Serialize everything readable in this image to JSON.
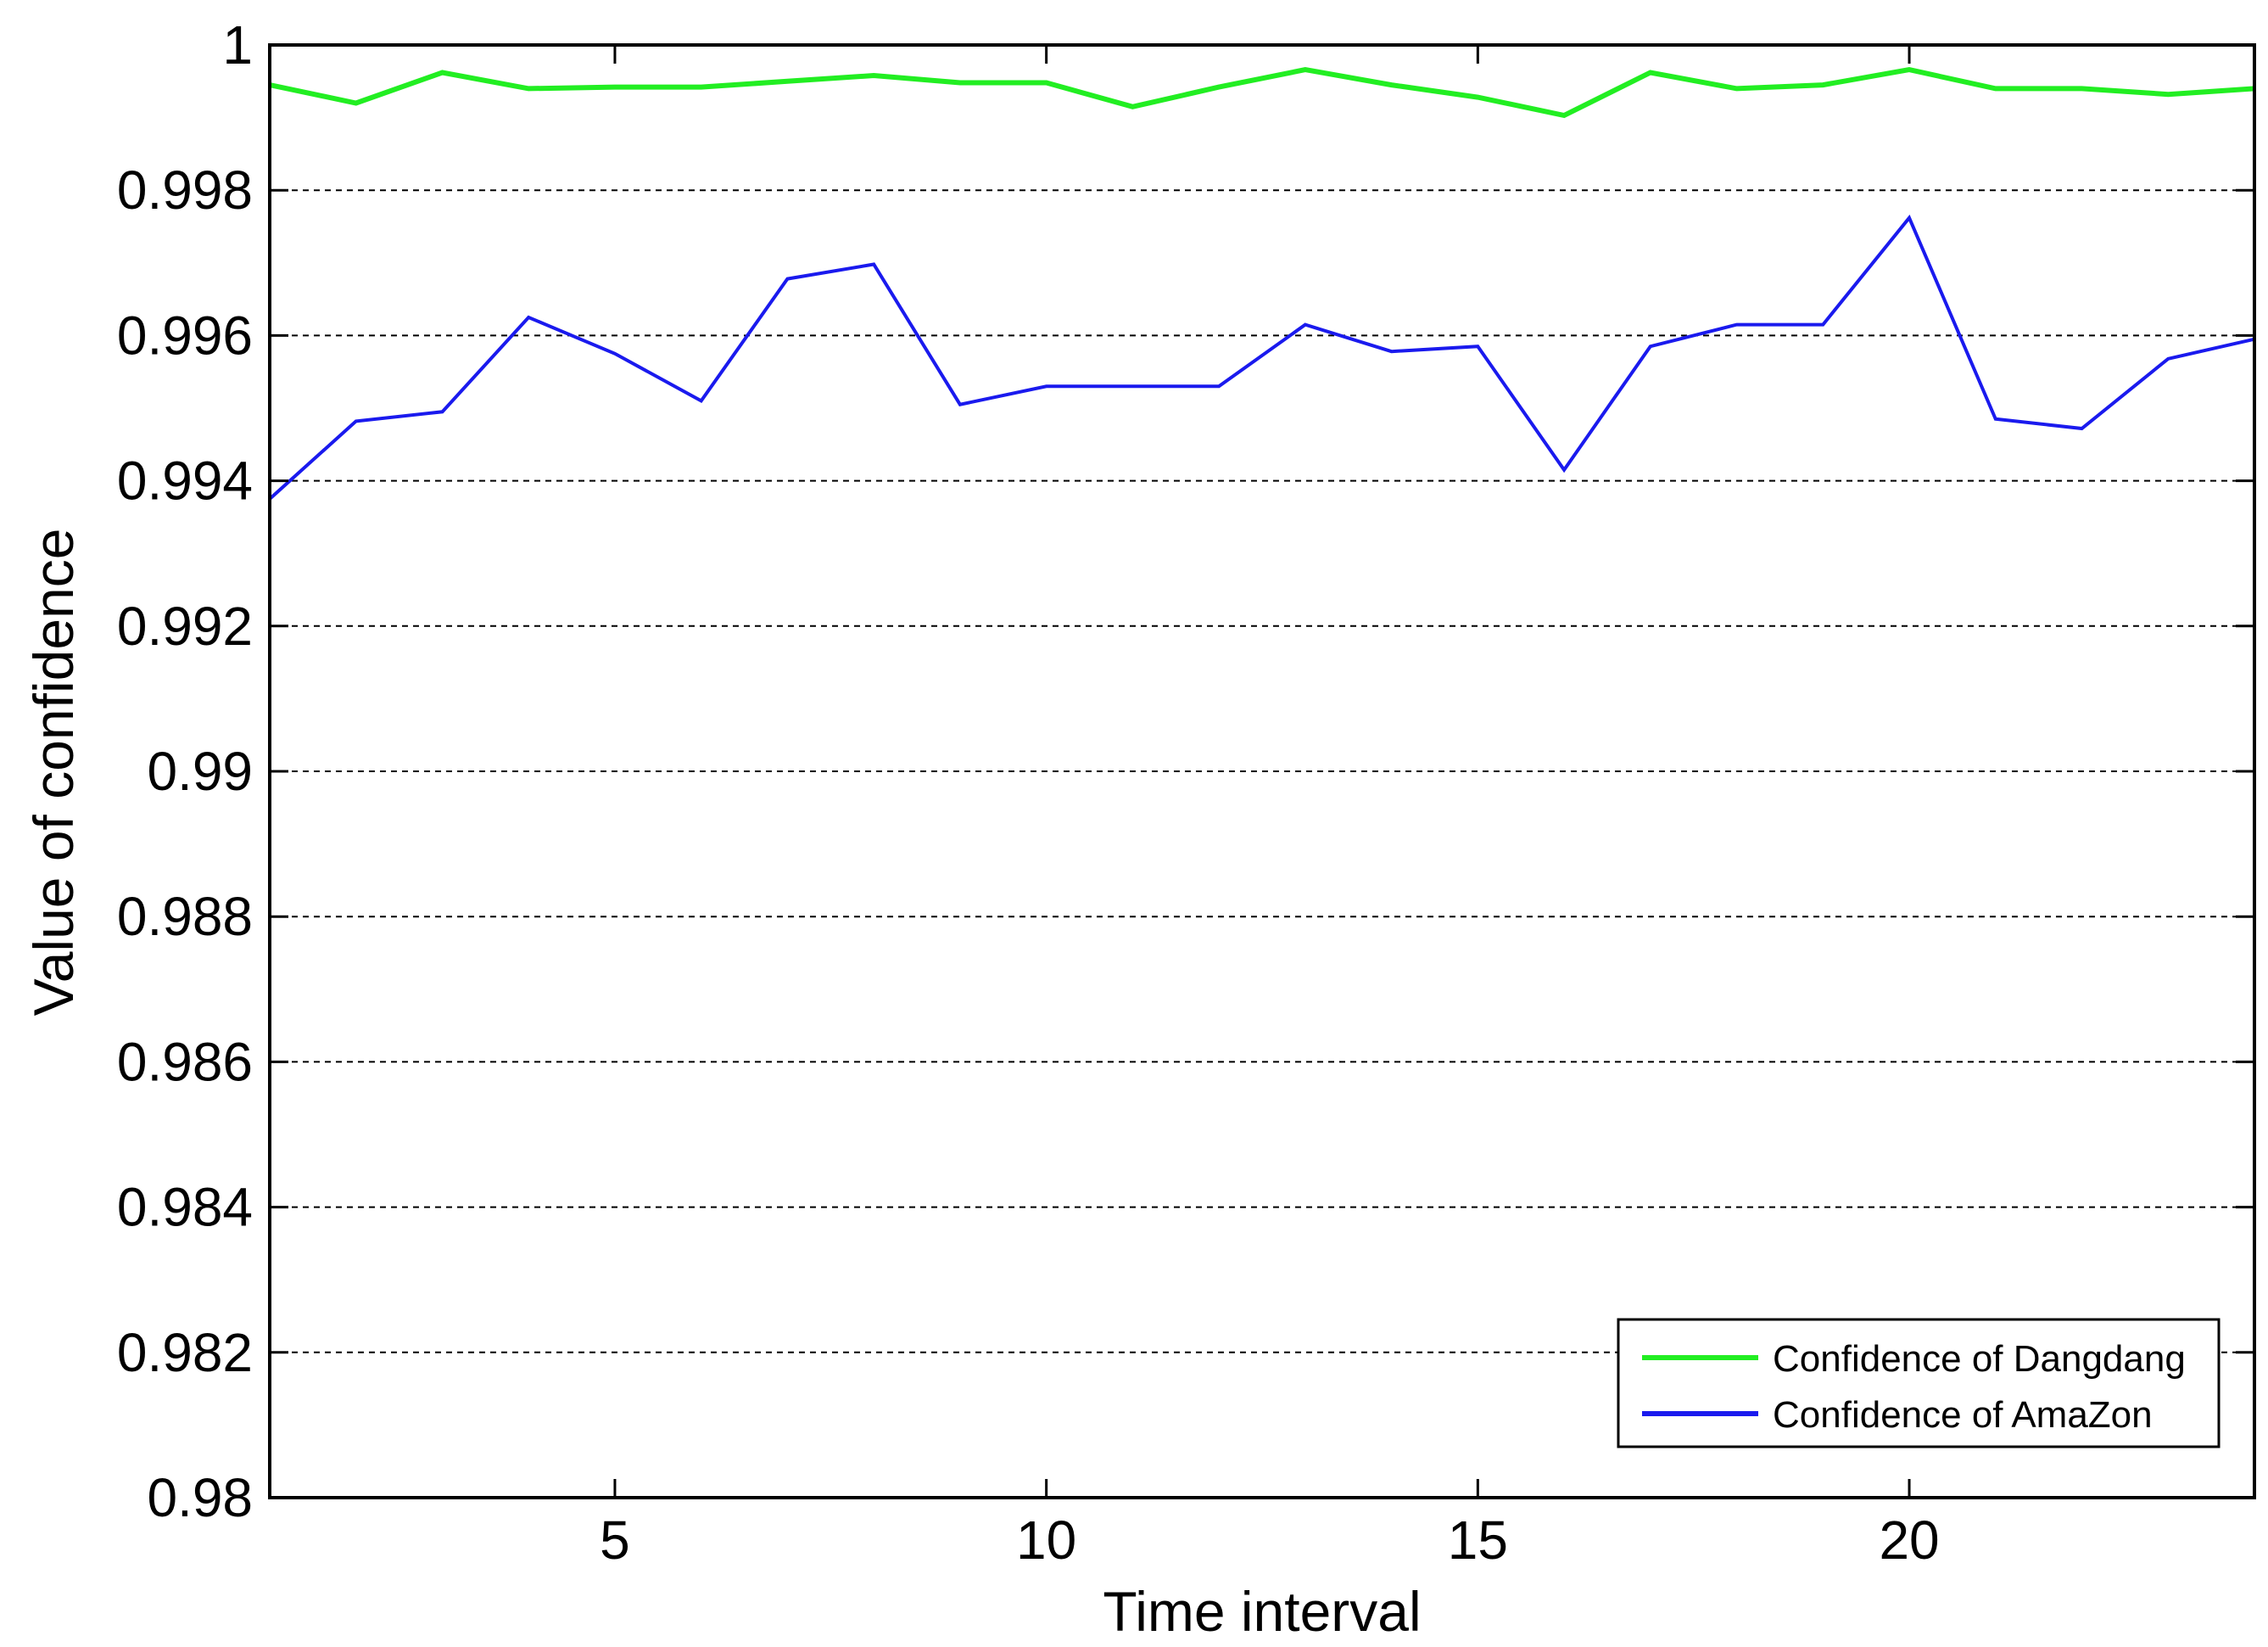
{
  "chart_data": {
    "type": "line",
    "xlabel": "Time interval",
    "ylabel": "Value of confidence",
    "xlim": [
      1,
      24
    ],
    "ylim": [
      0.98,
      1.0
    ],
    "xticks": [
      5,
      10,
      15,
      20
    ],
    "yticks": [
      0.98,
      0.982,
      0.984,
      0.986,
      0.988,
      0.99,
      0.992,
      0.994,
      0.996,
      0.998,
      1.0
    ],
    "ytick_labels": [
      "0.98",
      "0.982",
      "0.984",
      "0.986",
      "0.988",
      "0.99",
      "0.992",
      "0.994",
      "0.996",
      "0.998",
      "1"
    ],
    "grid": "horizontal dashed",
    "legend_position": "bottom-right",
    "x": [
      1,
      2,
      3,
      4,
      5,
      6,
      7,
      8,
      9,
      10,
      11,
      12,
      13,
      14,
      15,
      16,
      17,
      18,
      19,
      20,
      21,
      22,
      23,
      24
    ],
    "series": [
      {
        "name": "Confidence of Dangdang",
        "color": "#22ee22",
        "values": [
          0.99945,
          0.9992,
          0.99962,
          0.9994,
          0.99942,
          0.99942,
          0.9995,
          0.99958,
          0.99948,
          0.99948,
          0.99915,
          0.99942,
          0.99966,
          0.99945,
          0.99928,
          0.99903,
          0.99962,
          0.9994,
          0.99945,
          0.99966,
          0.9994,
          0.9994,
          0.99932,
          0.9994
        ]
      },
      {
        "name": "Confidence of AmaZon",
        "color": "#1a1aee",
        "values": [
          0.99375,
          0.99482,
          0.99495,
          0.99625,
          0.99575,
          0.9951,
          0.99678,
          0.99698,
          0.99505,
          0.9953,
          0.9953,
          0.9953,
          0.99615,
          0.99578,
          0.99585,
          0.99415,
          0.99585,
          0.99615,
          0.99615,
          0.99762,
          0.99485,
          0.99472,
          0.99568,
          0.99595
        ]
      }
    ]
  }
}
